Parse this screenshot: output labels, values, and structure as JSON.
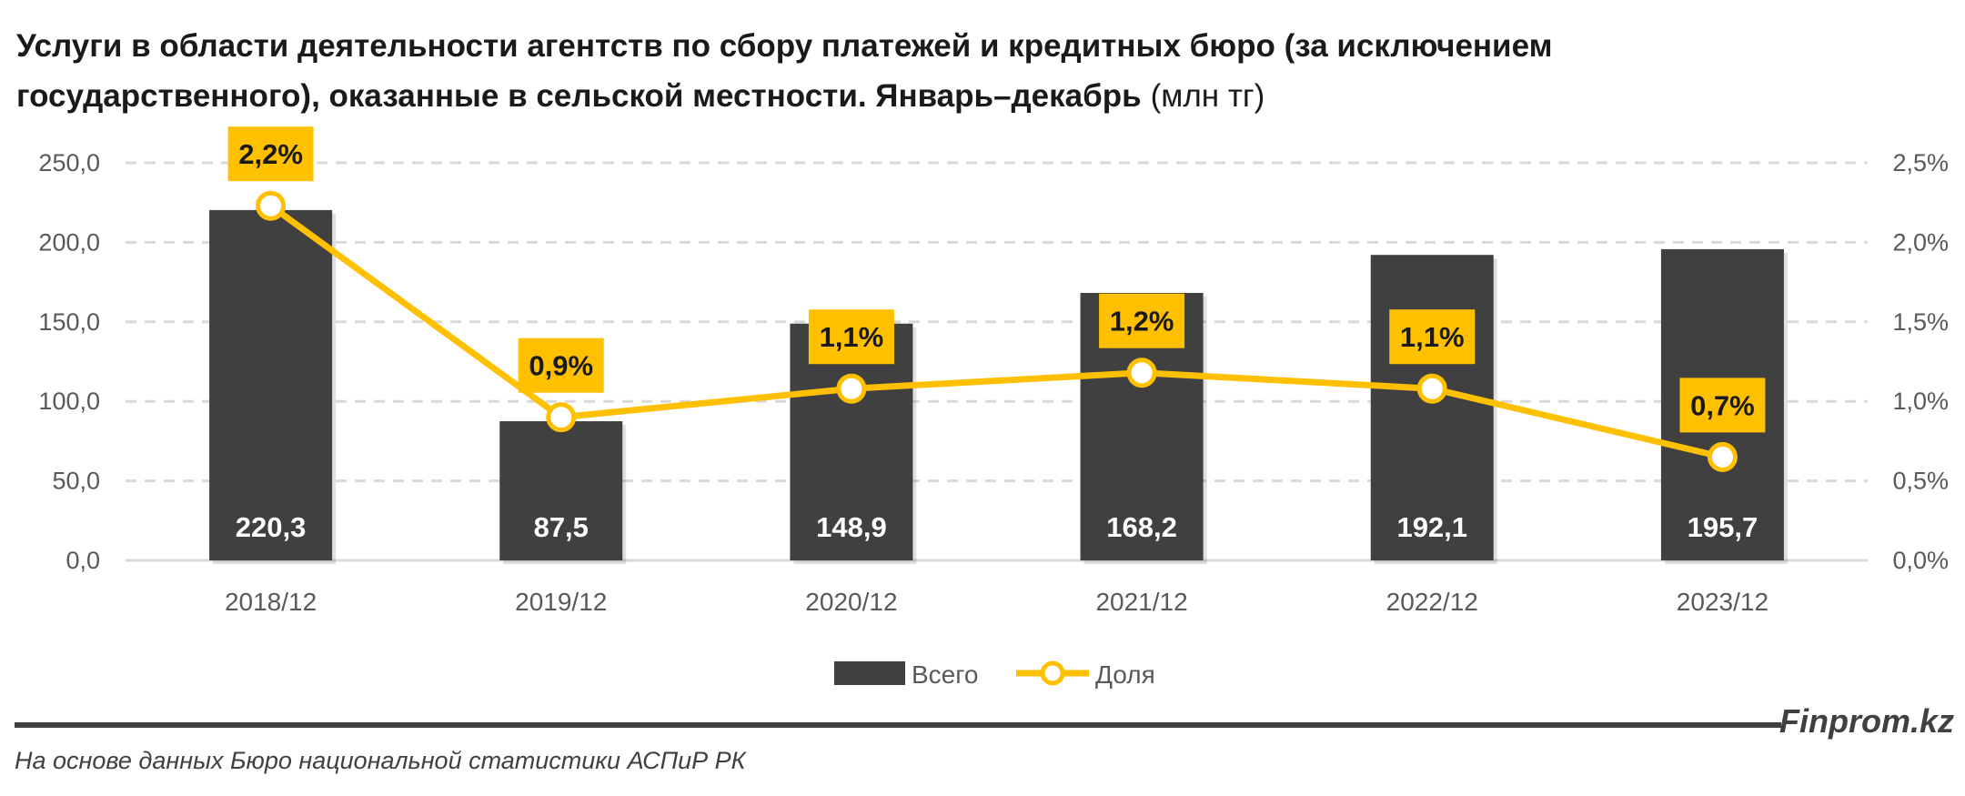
{
  "chart_data": {
    "type": "bar+line",
    "title_line1": "Услуги в области деятельности агентств по сбору платежей и кредитных бюро (за исключением",
    "title_line2": "государственного), оказанные в сельской местности. Январь–декабрь",
    "title_unit": "(млн тг)",
    "categories": [
      "2018/12",
      "2019/12",
      "2020/12",
      "2021/12",
      "2022/12",
      "2023/12"
    ],
    "series": [
      {
        "name": "Всего",
        "type": "bar",
        "axis": "left",
        "values": [
          220.3,
          87.5,
          148.9,
          168.2,
          192.1,
          195.7
        ],
        "labels": [
          "220,3",
          "87,5",
          "148,9",
          "168,2",
          "192,1",
          "195,7"
        ],
        "color": "#404040"
      },
      {
        "name": "Доля",
        "type": "line",
        "axis": "right",
        "values": [
          2.23,
          0.9,
          1.08,
          1.18,
          1.08,
          0.65
        ],
        "labels": [
          "2,2%",
          "0,9%",
          "1,1%",
          "1,2%",
          "1,1%",
          "0,7%"
        ],
        "color": "#FFC000"
      }
    ],
    "left_axis": {
      "range": [
        0,
        250
      ],
      "ticks": [
        "0,0",
        "50,0",
        "100,0",
        "150,0",
        "200,0",
        "250,0"
      ]
    },
    "right_axis": {
      "range": [
        0,
        2.5
      ],
      "ticks": [
        "0,0%",
        "0,5%",
        "1,0%",
        "1,5%",
        "2,0%",
        "2,5%"
      ]
    },
    "grid": true,
    "legend_position": "bottom"
  },
  "footer": {
    "brand": "Finprom.kz",
    "source": "На основе данных Бюро национальной статистики АСПиР РК"
  }
}
